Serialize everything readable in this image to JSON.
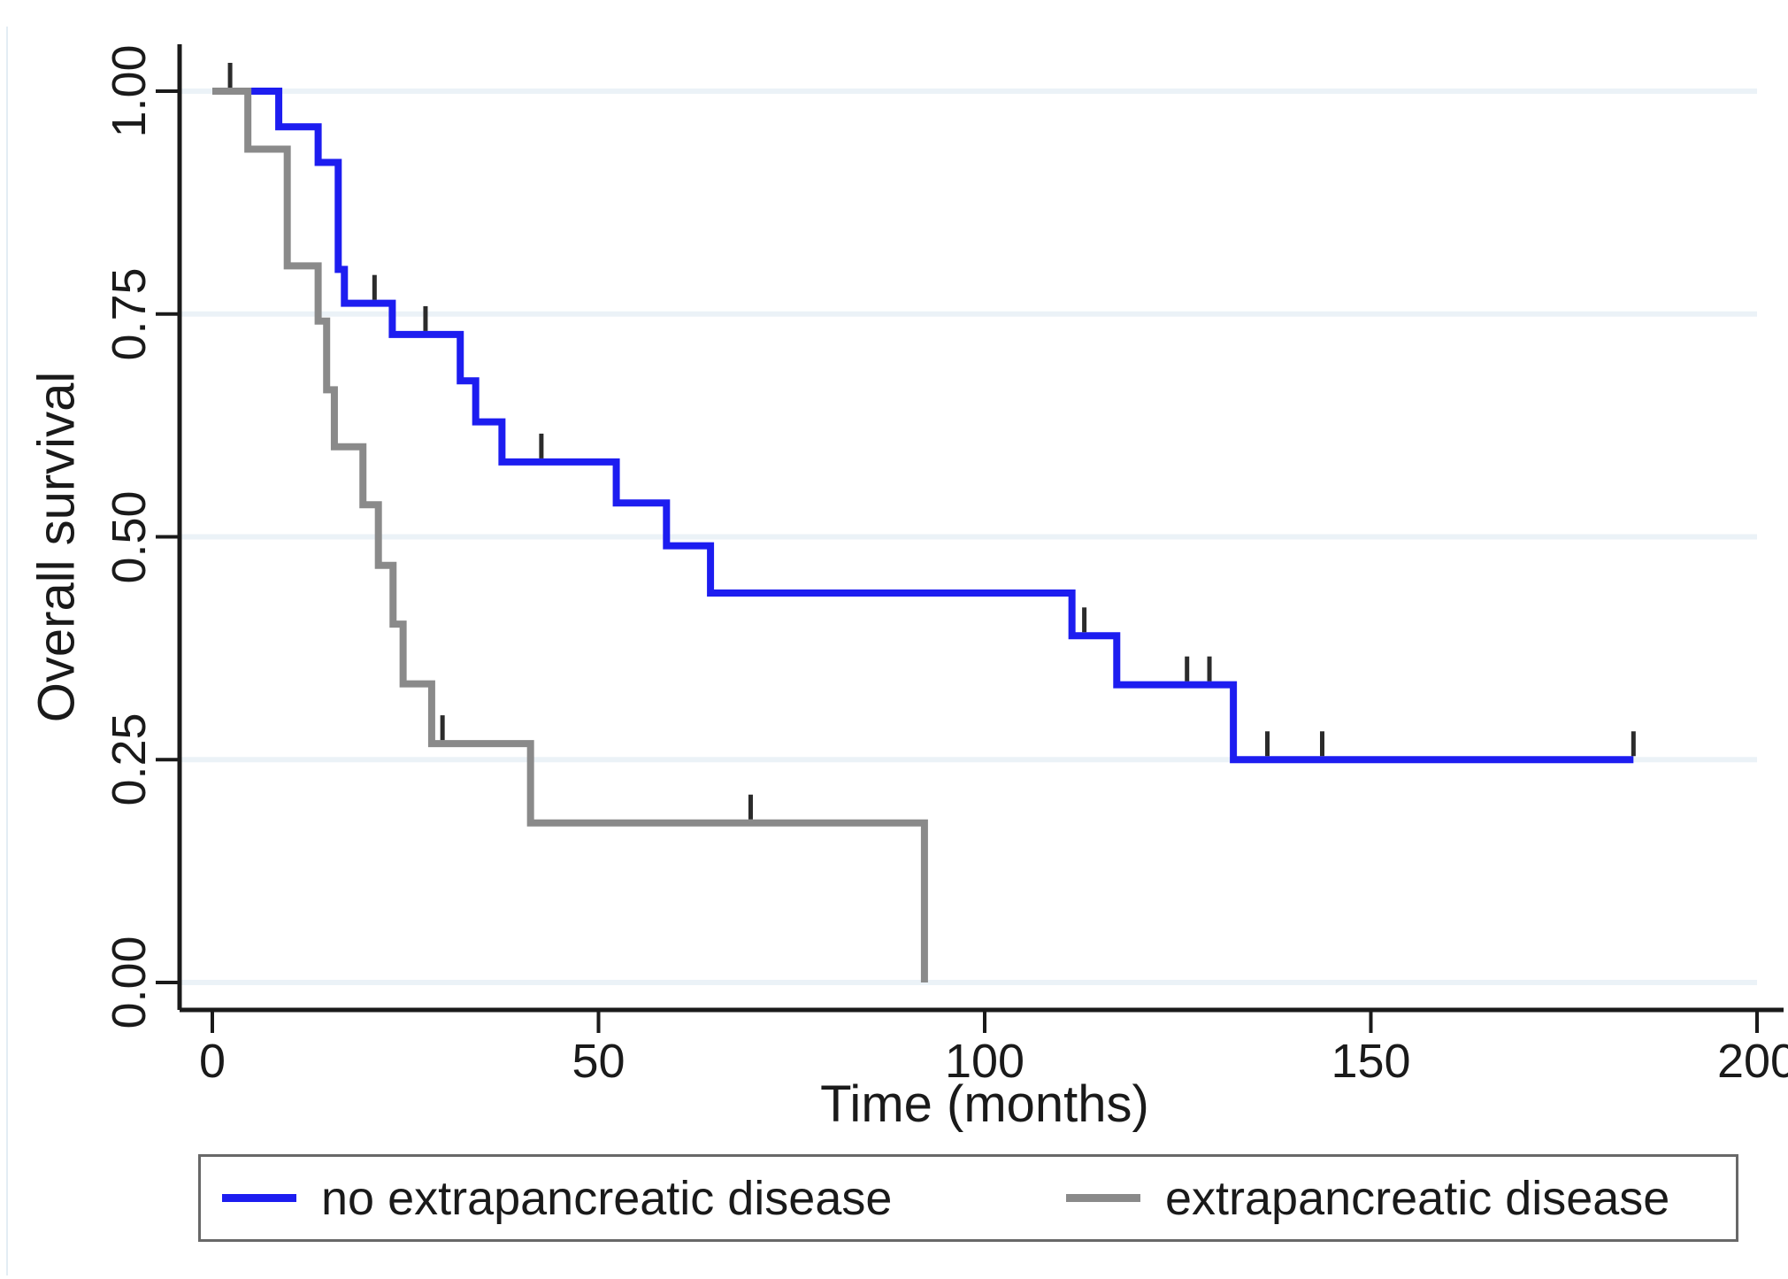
{
  "figure": {
    "background": "#ffffff",
    "frame_color": "#e3edf4"
  },
  "chart_data": {
    "type": "line",
    "subtype": "kaplan-meier-step",
    "title": "",
    "xlabel": "Time (months)",
    "ylabel": "Overall survival",
    "xlim": [
      0,
      200
    ],
    "ylim": [
      0.0,
      1.0
    ],
    "xticks": [
      0,
      50,
      100,
      150,
      200
    ],
    "xtick_labels": [
      "0",
      "50",
      "100",
      "150",
      "200"
    ],
    "yticks": [
      0.0,
      0.25,
      0.5,
      0.75,
      1.0
    ],
    "ytick_labels": [
      "0.00",
      "0.25",
      "0.50",
      "0.75",
      "1.00"
    ],
    "grid": "horizontal-only",
    "grid_color": "#ebf2f7",
    "axis_color": "#1a1a1a",
    "censor_mark_color": "#2b2b2b",
    "legend_position": "bottom-box",
    "series": [
      {
        "name": "no extrapancreatic disease",
        "color": "#1d1df0",
        "steps": [
          [
            0,
            1.0
          ],
          [
            8.6,
            0.96
          ],
          [
            13.7,
            0.92
          ],
          [
            16.3,
            0.8
          ],
          [
            17.1,
            0.762
          ],
          [
            23.3,
            0.727
          ],
          [
            32.1,
            0.675
          ],
          [
            34.1,
            0.629
          ],
          [
            37.5,
            0.584
          ],
          [
            52.3,
            0.538
          ],
          [
            58.8,
            0.49
          ],
          [
            64.5,
            0.437
          ],
          [
            111.3,
            0.389
          ],
          [
            117.1,
            0.334
          ],
          [
            132.2,
            0.25
          ]
        ],
        "end_time": 184,
        "censor_marks": [
          [
            2.3,
            1.0
          ],
          [
            21.0,
            0.762
          ],
          [
            27.6,
            0.727
          ],
          [
            42.6,
            0.584
          ],
          [
            112.9,
            0.389
          ],
          [
            126.2,
            0.334
          ],
          [
            129.1,
            0.334
          ],
          [
            136.6,
            0.25
          ],
          [
            143.7,
            0.25
          ],
          [
            184,
            0.25
          ]
        ]
      },
      {
        "name": "extrapancreatic disease",
        "color": "#8a8a8a",
        "steps": [
          [
            0,
            1.0
          ],
          [
            4.6,
            0.935
          ],
          [
            9.7,
            0.804
          ],
          [
            13.7,
            0.742
          ],
          [
            14.8,
            0.665
          ],
          [
            15.8,
            0.601
          ],
          [
            19.5,
            0.536
          ],
          [
            21.5,
            0.468
          ],
          [
            23.4,
            0.402
          ],
          [
            24.7,
            0.335
          ],
          [
            28.4,
            0.268
          ],
          [
            41.2,
            0.179
          ],
          [
            92.2,
            0.0
          ]
        ],
        "end_time": 92.2,
        "censor_marks": [
          [
            29.8,
            0.268
          ],
          [
            69.7,
            0.179
          ]
        ]
      }
    ]
  },
  "legend": {
    "border_color": "#686868"
  }
}
